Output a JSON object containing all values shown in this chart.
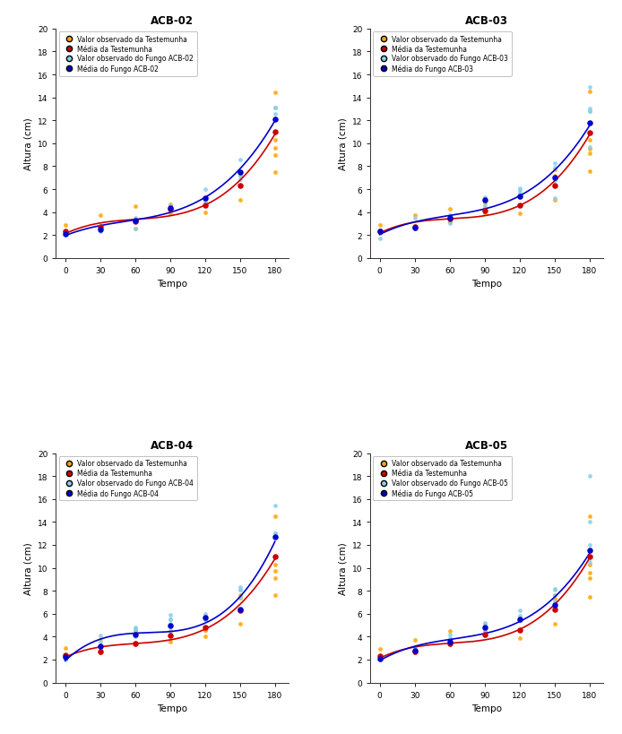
{
  "panels": [
    {
      "title": "ACB-02",
      "acb_label": "ACB-02",
      "time_points": [
        0,
        30,
        60,
        90,
        120,
        150,
        180
      ],
      "test_mean": [
        2.3,
        2.7,
        3.2,
        4.3,
        4.6,
        6.3,
        11.0
      ],
      "fungus_mean": [
        2.1,
        2.5,
        3.3,
        4.4,
        5.2,
        7.5,
        12.1
      ],
      "test_obs": [
        [
          2.9,
          2.2
        ],
        [
          3.7,
          2.6,
          2.6
        ],
        [
          4.5,
          3.3,
          3.3,
          2.6
        ],
        [
          4.7,
          4.5,
          4.1,
          3.9
        ],
        [
          4.0,
          4.6,
          4.6
        ],
        [
          5.1,
          6.3,
          7.5,
          7.2
        ],
        [
          9.6,
          10.3,
          7.5,
          14.4,
          9.0
        ]
      ],
      "fungus_obs": [
        [
          2.1
        ],
        [
          2.3,
          2.5,
          2.6
        ],
        [
          2.6,
          3.3,
          3.5
        ],
        [
          4.5,
          4.5,
          4.5,
          4.4
        ],
        [
          6.0,
          4.9,
          5.1
        ],
        [
          8.6,
          7.6,
          6.9,
          7.2
        ],
        [
          13.1,
          12.6,
          12.1,
          13.1
        ]
      ]
    },
    {
      "title": "ACB-03",
      "acb_label": "ACB-03",
      "time_points": [
        0,
        30,
        60,
        90,
        120,
        150,
        180
      ],
      "test_mean": [
        2.35,
        2.75,
        3.4,
        4.1,
        4.6,
        6.3,
        10.9
      ],
      "fungus_mean": [
        2.3,
        2.65,
        3.5,
        5.1,
        5.4,
        7.0,
        11.8
      ],
      "test_obs": [
        [
          2.9,
          2.2
        ],
        [
          3.7,
          2.6,
          2.6
        ],
        [
          4.3,
          3.1,
          3.3
        ],
        [
          4.8,
          4.4,
          4.1,
          3.9
        ],
        [
          3.9,
          4.6,
          4.6
        ],
        [
          5.1,
          6.3,
          7.7,
          7.2
        ],
        [
          9.5,
          10.3,
          7.6,
          14.5,
          9.1
        ]
      ],
      "fungus_obs": [
        [
          1.7,
          2.3
        ],
        [
          2.6,
          2.8,
          3.5
        ],
        [
          3.0,
          3.5,
          3.7
        ],
        [
          4.6,
          5.1,
          5.1,
          5.3
        ],
        [
          5.7,
          5.3,
          5.9,
          6.1
        ],
        [
          5.2,
          6.8,
          7.9,
          8.3
        ],
        [
          12.8,
          14.9,
          13.0,
          12.8,
          9.7
        ]
      ]
    },
    {
      "title": "ACB-04",
      "acb_label": "ACB-04",
      "time_points": [
        0,
        30,
        60,
        90,
        120,
        150,
        180
      ],
      "test_mean": [
        2.4,
        2.7,
        3.4,
        4.1,
        4.8,
        6.3,
        11.0
      ],
      "fungus_mean": [
        2.2,
        3.2,
        4.2,
        5.0,
        5.7,
        6.4,
        12.7
      ],
      "test_obs": [
        [
          3.0,
          2.2
        ],
        [
          3.8,
          2.6,
          2.6
        ],
        [
          4.5,
          3.5,
          3.3
        ],
        [
          3.6,
          4.5,
          4.1,
          4.1
        ],
        [
          4.0,
          4.6,
          4.6
        ],
        [
          5.1,
          6.3,
          7.6,
          7.4
        ],
        [
          9.7,
          10.3,
          7.6,
          14.5,
          9.1
        ]
      ],
      "fungus_obs": [
        [
          2.0,
          2.1
        ],
        [
          3.0,
          3.2,
          3.6,
          4.1
        ],
        [
          4.0,
          4.6,
          4.8,
          4.7
        ],
        [
          5.9,
          5.1,
          5.5,
          4.5,
          5.5
        ],
        [
          6.0,
          5.5,
          5.5
        ],
        [
          8.1,
          8.1,
          8.3,
          7.5
        ],
        [
          15.4,
          13.0,
          12.7,
          13.0
        ]
      ]
    },
    {
      "title": "ACB-05",
      "acb_label": "ACB-05",
      "time_points": [
        0,
        30,
        60,
        90,
        120,
        150,
        180
      ],
      "test_mean": [
        2.3,
        2.7,
        3.4,
        4.2,
        4.6,
        6.4,
        11.0
      ],
      "fungus_mean": [
        2.1,
        2.8,
        3.6,
        4.8,
        5.5,
        6.8,
        11.5
      ],
      "test_obs": [
        [
          2.9,
          2.2
        ],
        [
          3.7,
          2.6,
          2.6
        ],
        [
          4.5,
          3.3,
          3.3
        ],
        [
          4.7,
          4.5,
          4.1
        ],
        [
          3.9,
          4.6,
          4.6
        ],
        [
          5.1,
          6.4,
          7.6,
          7.3
        ],
        [
          9.6,
          10.3,
          7.5,
          14.5,
          9.1
        ]
      ],
      "fungus_obs": [
        [
          2.0,
          2.2
        ],
        [
          2.7,
          2.9,
          3.0
        ],
        [
          3.4,
          3.6,
          3.9,
          4.2
        ],
        [
          4.5,
          5.1,
          5.2,
          4.5
        ],
        [
          5.4,
          5.8,
          5.6,
          6.3
        ],
        [
          6.5,
          7.1,
          8.2,
          8.1,
          7.6
        ],
        [
          11.5,
          12.0,
          18.0,
          14.0,
          10.5
        ]
      ]
    }
  ],
  "bg_color": "#ffffff",
  "plot_bg_color": "#ffffff",
  "orange_color": "#FFA500",
  "light_blue_color": "#87CEEB",
  "red_color": "#CC0000",
  "blue_color": "#0000CC",
  "ylim": [
    0,
    20
  ],
  "yticks": [
    0,
    2,
    4,
    6,
    8,
    10,
    12,
    14,
    16,
    18,
    20
  ],
  "xticks": [
    0,
    30,
    60,
    90,
    120,
    150,
    180
  ],
  "xlabel": "Tempo",
  "ylabel": "Altura (cm)"
}
